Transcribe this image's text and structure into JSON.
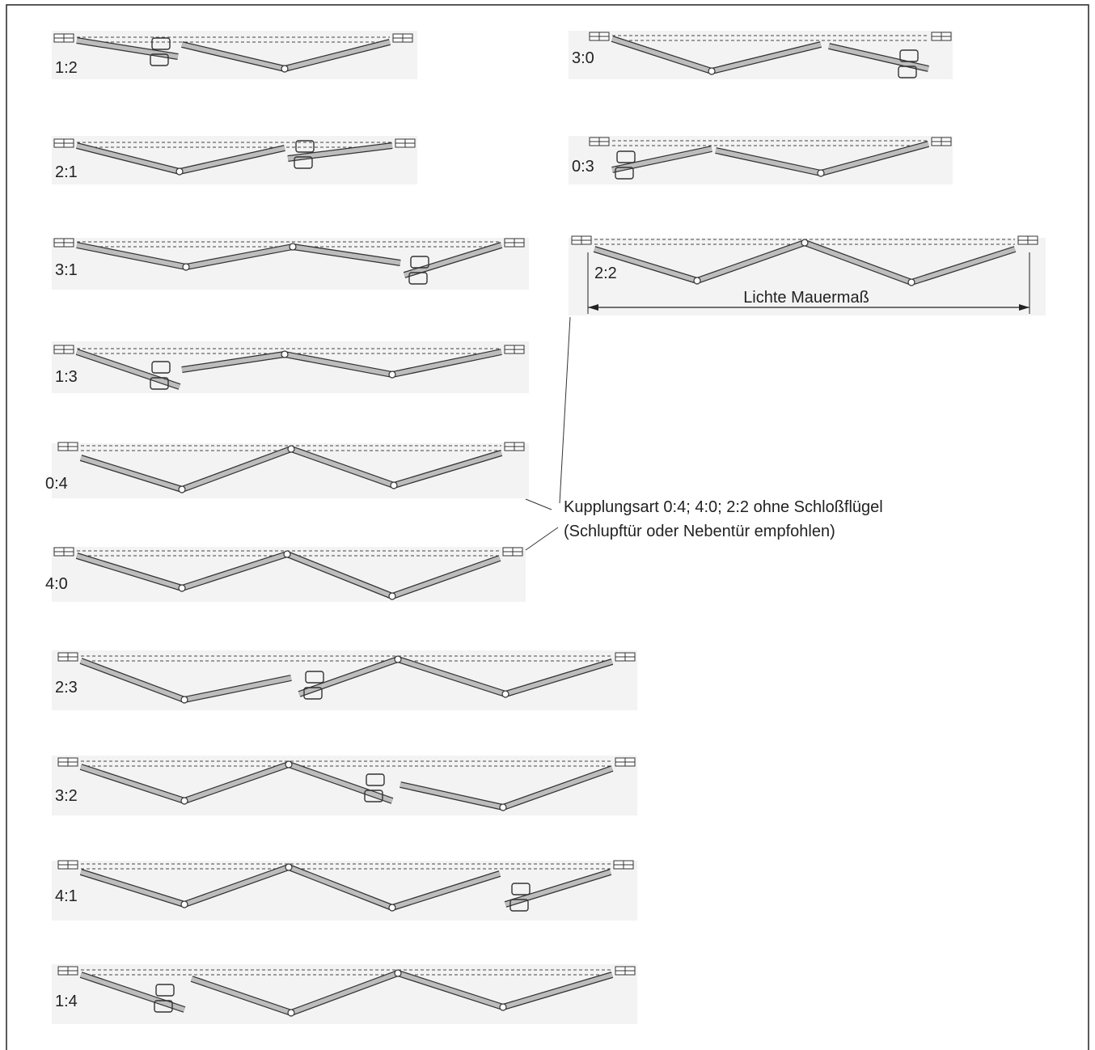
{
  "panels": [
    {
      "label": "1:2"
    },
    {
      "label": "3:0"
    },
    {
      "label": "2:1"
    },
    {
      "label": "0:3"
    },
    {
      "label": "3:1"
    },
    {
      "label": "2:2"
    },
    {
      "label": "1:3"
    },
    {
      "label": "0:4"
    },
    {
      "label": "4:0"
    },
    {
      "label": "2:3"
    },
    {
      "label": "3:2"
    },
    {
      "label": "4:1"
    },
    {
      "label": "1:4"
    }
  ],
  "dimension_label": "Lichte Mauermaß",
  "note": {
    "line1": "Kupplungsart 0:4; 4:0; 2:2 ohne Schloßflügel",
    "line2": "(Schlupftür oder Nebentür empfohlen)"
  }
}
